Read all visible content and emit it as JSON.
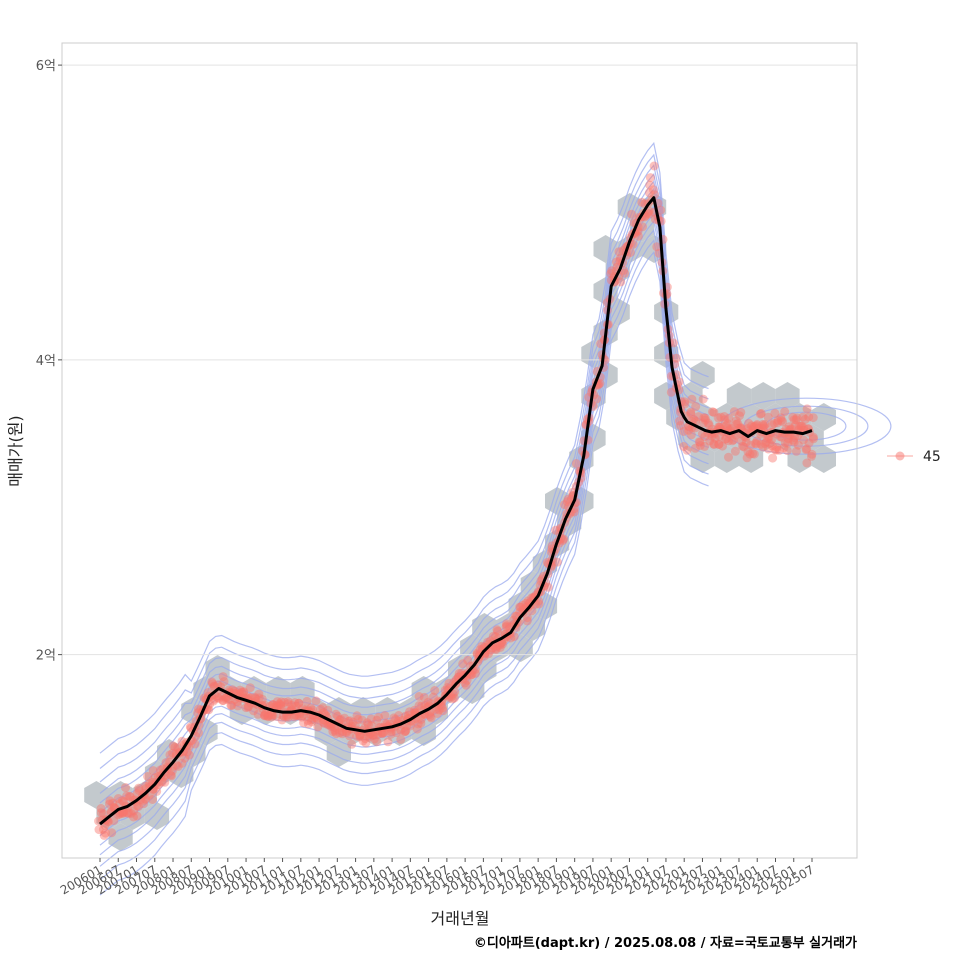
{
  "chart_data": {
    "type": "scatter",
    "title": "",
    "xlabel": "거래년월",
    "ylabel": "매매가(원)",
    "caption": "©디아파트(dapt.kr) / 2025.08.08 / 자료=국토교통부 실거래가",
    "ylim": [
      0.62,
      6.15
    ],
    "y_ticks": [
      {
        "value": 2,
        "label": "2억"
      },
      {
        "value": 4,
        "label": "4억"
      },
      {
        "value": 6,
        "label": "6억"
      }
    ],
    "x_tick_labels": [
      "200601",
      "200607",
      "200701",
      "200707",
      "200801",
      "200807",
      "200901",
      "200907",
      "201001",
      "201007",
      "201101",
      "201107",
      "201201",
      "201207",
      "201301",
      "201307",
      "201401",
      "201407",
      "201501",
      "201507",
      "201601",
      "201607",
      "201701",
      "201707",
      "201801",
      "201807",
      "201901",
      "201907",
      "202001",
      "202007",
      "202101",
      "202107",
      "202201",
      "202207",
      "202301",
      "202307",
      "202401",
      "202407",
      "202501",
      "202507"
    ],
    "legend": {
      "position": "right",
      "entries": [
        {
          "label": "45"
        }
      ]
    },
    "grid": true,
    "colors": {
      "points": "#f8766d",
      "trend": "#000000",
      "hex": "#b9bfc4",
      "contour": "#99aaee",
      "grid": "#e3e3e3",
      "panel_border": "#cccccc"
    },
    "series": [
      {
        "type": "line",
        "x": [
          "200601",
          "200604",
          "200607",
          "200610",
          "200701",
          "200704",
          "200707",
          "200710",
          "200801",
          "200804",
          "200807",
          "200810",
          "200901",
          "200904",
          "200907",
          "200910",
          "201001",
          "201004",
          "201007",
          "201010",
          "201101",
          "201104",
          "201107",
          "201110",
          "201201",
          "201204",
          "201207",
          "201210",
          "201301",
          "201304",
          "201307",
          "201310",
          "201401",
          "201404",
          "201407",
          "201410",
          "201501",
          "201504",
          "201507",
          "201510",
          "201601",
          "201604",
          "201607",
          "201610",
          "201701",
          "201704",
          "201707",
          "201710",
          "201801",
          "201804",
          "201807",
          "201810",
          "201901",
          "201904",
          "201907",
          "201910",
          "202001",
          "202004",
          "202007",
          "202010",
          "202101",
          "202103",
          "202105",
          "202107",
          "202109",
          "202111",
          "202112",
          "202201",
          "202202",
          "202204",
          "202206",
          "202208",
          "202210",
          "202301",
          "202304",
          "202307",
          "202310",
          "202401",
          "202404",
          "202407",
          "202410",
          "202501",
          "202504",
          "202507"
        ],
        "y": [
          0.85,
          0.9,
          0.95,
          0.97,
          1.01,
          1.06,
          1.12,
          1.2,
          1.27,
          1.35,
          1.45,
          1.58,
          1.72,
          1.77,
          1.74,
          1.71,
          1.69,
          1.67,
          1.64,
          1.62,
          1.61,
          1.61,
          1.62,
          1.61,
          1.59,
          1.56,
          1.53,
          1.5,
          1.49,
          1.48,
          1.49,
          1.5,
          1.51,
          1.53,
          1.56,
          1.6,
          1.63,
          1.67,
          1.73,
          1.8,
          1.86,
          1.93,
          2.02,
          2.08,
          2.11,
          2.15,
          2.25,
          2.32,
          2.4,
          2.55,
          2.75,
          2.92,
          3.05,
          3.35,
          3.8,
          3.96,
          4.5,
          4.62,
          4.8,
          4.95,
          5.05,
          5.1,
          4.9,
          4.35,
          3.95,
          3.75,
          3.65,
          3.61,
          3.58,
          3.56,
          3.54,
          3.52,
          3.51,
          3.52,
          3.5,
          3.52,
          3.48,
          3.52,
          3.5,
          3.52,
          3.51,
          3.51,
          3.5,
          3.52
        ]
      }
    ]
  }
}
